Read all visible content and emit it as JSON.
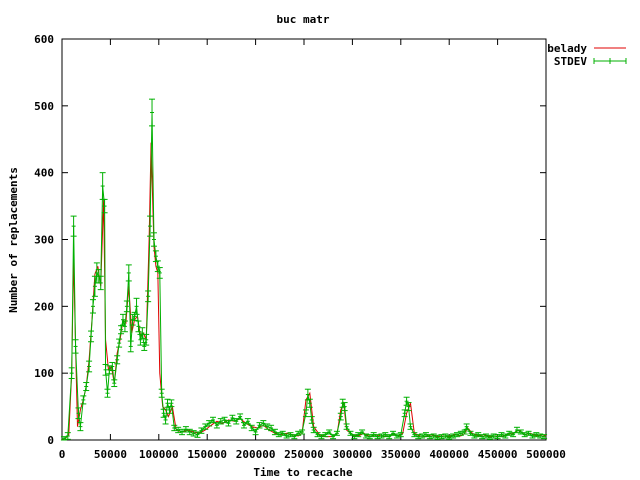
{
  "chart_data": {
    "type": "line",
    "title": "buc matr",
    "xlabel": "Time to recache",
    "ylabel": "Number of replacements",
    "xlim": [
      0,
      500000
    ],
    "ylim": [
      0,
      600
    ],
    "x_ticks": [
      0,
      50000,
      100000,
      150000,
      200000,
      250000,
      300000,
      350000,
      400000,
      450000,
      500000
    ],
    "y_ticks": [
      0,
      100,
      200,
      300,
      400,
      500,
      600
    ],
    "x_tick_labels": [
      "0",
      "50000",
      "100000",
      "150000",
      "200000",
      "250000",
      "300000",
      "350000",
      "400000",
      "450000",
      "500000"
    ],
    "y_tick_labels": [
      "0",
      "100",
      "200",
      "300",
      "400",
      "500",
      "600"
    ],
    "grid": false,
    "legend_position": "top-right",
    "series": [
      {
        "name": "belady",
        "color": "#e00000",
        "style": "line",
        "points": [
          [
            0,
            0
          ],
          [
            4000,
            3
          ],
          [
            7000,
            8
          ],
          [
            10000,
            100
          ],
          [
            12000,
            272
          ],
          [
            14000,
            140
          ],
          [
            16000,
            20
          ],
          [
            19000,
            45
          ],
          [
            22000,
            60
          ],
          [
            25000,
            80
          ],
          [
            28000,
            120
          ],
          [
            31000,
            180
          ],
          [
            34000,
            248
          ],
          [
            37000,
            260
          ],
          [
            40000,
            230
          ],
          [
            43000,
            360
          ],
          [
            45000,
            150
          ],
          [
            48000,
            105
          ],
          [
            51000,
            110
          ],
          [
            54000,
            85
          ],
          [
            57000,
            130
          ],
          [
            60000,
            150
          ],
          [
            63000,
            180
          ],
          [
            66000,
            175
          ],
          [
            69000,
            230
          ],
          [
            72000,
            160
          ],
          [
            75000,
            180
          ],
          [
            78000,
            185
          ],
          [
            81000,
            155
          ],
          [
            84000,
            160
          ],
          [
            87000,
            150
          ],
          [
            90000,
            300
          ],
          [
            92000,
            445
          ],
          [
            95000,
            290
          ],
          [
            97000,
            260
          ],
          [
            99000,
            250
          ],
          [
            101000,
            100
          ],
          [
            104000,
            50
          ],
          [
            107000,
            45
          ],
          [
            110000,
            35
          ],
          [
            114000,
            50
          ],
          [
            118000,
            15
          ],
          [
            124000,
            12
          ],
          [
            130000,
            15
          ],
          [
            136000,
            12
          ],
          [
            142000,
            10
          ],
          [
            148000,
            15
          ],
          [
            154000,
            22
          ],
          [
            160000,
            28
          ],
          [
            166000,
            25
          ],
          [
            172000,
            30
          ],
          [
            178000,
            28
          ],
          [
            184000,
            32
          ],
          [
            190000,
            25
          ],
          [
            196000,
            20
          ],
          [
            202000,
            18
          ],
          [
            208000,
            22
          ],
          [
            214000,
            15
          ],
          [
            220000,
            10
          ],
          [
            226000,
            8
          ],
          [
            232000,
            10
          ],
          [
            238000,
            8
          ],
          [
            244000,
            6
          ],
          [
            248000,
            10
          ],
          [
            252000,
            60
          ],
          [
            256000,
            70
          ],
          [
            260000,
            20
          ],
          [
            266000,
            8
          ],
          [
            272000,
            5
          ],
          [
            278000,
            5
          ],
          [
            284000,
            8
          ],
          [
            288000,
            45
          ],
          [
            291000,
            55
          ],
          [
            294000,
            15
          ],
          [
            300000,
            8
          ],
          [
            306000,
            6
          ],
          [
            312000,
            10
          ],
          [
            318000,
            5
          ],
          [
            324000,
            8
          ],
          [
            330000,
            6
          ],
          [
            336000,
            5
          ],
          [
            342000,
            8
          ],
          [
            348000,
            6
          ],
          [
            352000,
            10
          ],
          [
            356000,
            40
          ],
          [
            360000,
            55
          ],
          [
            364000,
            10
          ],
          [
            370000,
            6
          ],
          [
            376000,
            5
          ],
          [
            382000,
            8
          ],
          [
            388000,
            5
          ],
          [
            394000,
            6
          ],
          [
            400000,
            5
          ],
          [
            406000,
            8
          ],
          [
            412000,
            6
          ],
          [
            416000,
            10
          ],
          [
            419000,
            18
          ],
          [
            424000,
            10
          ],
          [
            430000,
            6
          ],
          [
            436000,
            8
          ],
          [
            442000,
            5
          ],
          [
            448000,
            6
          ],
          [
            454000,
            5
          ],
          [
            460000,
            8
          ],
          [
            466000,
            10
          ],
          [
            472000,
            15
          ],
          [
            478000,
            8
          ],
          [
            484000,
            10
          ],
          [
            490000,
            6
          ],
          [
            496000,
            8
          ],
          [
            500000,
            6
          ]
        ]
      },
      {
        "name": "STDEV",
        "color": "#00b000",
        "style": "errorbars",
        "points": [
          [
            2000,
            2,
            3
          ],
          [
            6000,
            6,
            5
          ],
          [
            10000,
            100,
            8
          ],
          [
            12000,
            320,
            15
          ],
          [
            14000,
            140,
            10
          ],
          [
            17000,
            40,
            8
          ],
          [
            19000,
            20,
            6
          ],
          [
            22000,
            60,
            6
          ],
          [
            25000,
            80,
            6
          ],
          [
            28000,
            110,
            8
          ],
          [
            30000,
            155,
            8
          ],
          [
            32000,
            200,
            10
          ],
          [
            34000,
            230,
            15
          ],
          [
            36000,
            250,
            15
          ],
          [
            38000,
            245,
            10
          ],
          [
            40000,
            235,
            10
          ],
          [
            42000,
            380,
            20
          ],
          [
            44000,
            350,
            10
          ],
          [
            45000,
            105,
            8
          ],
          [
            47000,
            70,
            6
          ],
          [
            49000,
            105,
            6
          ],
          [
            52000,
            110,
            6
          ],
          [
            54000,
            85,
            5
          ],
          [
            57000,
            120,
            6
          ],
          [
            59000,
            145,
            6
          ],
          [
            61000,
            165,
            6
          ],
          [
            63000,
            180,
            8
          ],
          [
            65000,
            170,
            8
          ],
          [
            67000,
            200,
            8
          ],
          [
            69000,
            250,
            12
          ],
          [
            71000,
            140,
            8
          ],
          [
            73000,
            180,
            8
          ],
          [
            75000,
            185,
            6
          ],
          [
            77000,
            200,
            12
          ],
          [
            79000,
            170,
            8
          ],
          [
            81000,
            150,
            8
          ],
          [
            83000,
            160,
            8
          ],
          [
            85000,
            140,
            6
          ],
          [
            87000,
            150,
            8
          ],
          [
            89000,
            215,
            8
          ],
          [
            91000,
            320,
            15
          ],
          [
            93000,
            490,
            20
          ],
          [
            95000,
            300,
            10
          ],
          [
            97000,
            275,
            8
          ],
          [
            99000,
            260,
            8
          ],
          [
            101000,
            250,
            8
          ],
          [
            103000,
            70,
            6
          ],
          [
            105000,
            40,
            6
          ],
          [
            107000,
            30,
            6
          ],
          [
            109000,
            55,
            6
          ],
          [
            111000,
            45,
            5
          ],
          [
            113000,
            55,
            5
          ],
          [
            116000,
            18,
            4
          ],
          [
            120000,
            15,
            4
          ],
          [
            124000,
            12,
            4
          ],
          [
            128000,
            16,
            4
          ],
          [
            132000,
            12,
            4
          ],
          [
            136000,
            10,
            4
          ],
          [
            140000,
            8,
            4
          ],
          [
            144000,
            14,
            4
          ],
          [
            148000,
            20,
            4
          ],
          [
            152000,
            25,
            4
          ],
          [
            156000,
            30,
            4
          ],
          [
            160000,
            22,
            4
          ],
          [
            164000,
            28,
            4
          ],
          [
            168000,
            30,
            4
          ],
          [
            172000,
            25,
            4
          ],
          [
            176000,
            33,
            4
          ],
          [
            180000,
            28,
            4
          ],
          [
            184000,
            35,
            4
          ],
          [
            188000,
            22,
            4
          ],
          [
            192000,
            28,
            4
          ],
          [
            196000,
            18,
            4
          ],
          [
            200000,
            12,
            4
          ],
          [
            204000,
            22,
            4
          ],
          [
            208000,
            25,
            4
          ],
          [
            212000,
            20,
            4
          ],
          [
            216000,
            18,
            4
          ],
          [
            220000,
            12,
            4
          ],
          [
            224000,
            8,
            3
          ],
          [
            228000,
            10,
            3
          ],
          [
            232000,
            6,
            3
          ],
          [
            236000,
            8,
            3
          ],
          [
            240000,
            5,
            3
          ],
          [
            244000,
            10,
            3
          ],
          [
            248000,
            12,
            3
          ],
          [
            252000,
            40,
            5
          ],
          [
            254000,
            68,
            8
          ],
          [
            256000,
            55,
            6
          ],
          [
            258000,
            30,
            5
          ],
          [
            260000,
            15,
            4
          ],
          [
            264000,
            8,
            3
          ],
          [
            268000,
            5,
            3
          ],
          [
            272000,
            8,
            3
          ],
          [
            276000,
            12,
            3
          ],
          [
            280000,
            5,
            3
          ],
          [
            284000,
            10,
            3
          ],
          [
            288000,
            35,
            5
          ],
          [
            290000,
            55,
            6
          ],
          [
            292000,
            50,
            6
          ],
          [
            294000,
            20,
            4
          ],
          [
            298000,
            10,
            3
          ],
          [
            302000,
            5,
            3
          ],
          [
            306000,
            8,
            3
          ],
          [
            310000,
            12,
            3
          ],
          [
            314000,
            6,
            3
          ],
          [
            318000,
            5,
            3
          ],
          [
            322000,
            8,
            3
          ],
          [
            326000,
            5,
            3
          ],
          [
            330000,
            6,
            3
          ],
          [
            334000,
            8,
            3
          ],
          [
            338000,
            5,
            3
          ],
          [
            342000,
            10,
            3
          ],
          [
            346000,
            6,
            3
          ],
          [
            350000,
            8,
            3
          ],
          [
            354000,
            40,
            5
          ],
          [
            356000,
            58,
            6
          ],
          [
            358000,
            50,
            6
          ],
          [
            360000,
            20,
            4
          ],
          [
            364000,
            8,
            3
          ],
          [
            368000,
            5,
            3
          ],
          [
            372000,
            6,
            3
          ],
          [
            376000,
            8,
            3
          ],
          [
            380000,
            5,
            3
          ],
          [
            384000,
            6,
            3
          ],
          [
            388000,
            4,
            3
          ],
          [
            392000,
            5,
            3
          ],
          [
            396000,
            6,
            3
          ],
          [
            400000,
            4,
            3
          ],
          [
            404000,
            6,
            3
          ],
          [
            408000,
            8,
            3
          ],
          [
            412000,
            10,
            3
          ],
          [
            416000,
            12,
            3
          ],
          [
            418000,
            20,
            4
          ],
          [
            422000,
            10,
            3
          ],
          [
            426000,
            6,
            3
          ],
          [
            430000,
            8,
            3
          ],
          [
            434000,
            5,
            3
          ],
          [
            438000,
            6,
            3
          ],
          [
            442000,
            4,
            3
          ],
          [
            446000,
            6,
            3
          ],
          [
            450000,
            5,
            3
          ],
          [
            454000,
            8,
            3
          ],
          [
            458000,
            6,
            3
          ],
          [
            462000,
            10,
            3
          ],
          [
            466000,
            8,
            3
          ],
          [
            470000,
            15,
            4
          ],
          [
            474000,
            12,
            3
          ],
          [
            478000,
            8,
            3
          ],
          [
            482000,
            10,
            3
          ],
          [
            486000,
            6,
            3
          ],
          [
            490000,
            8,
            3
          ],
          [
            494000,
            6,
            3
          ],
          [
            498000,
            5,
            3
          ]
        ]
      }
    ]
  }
}
